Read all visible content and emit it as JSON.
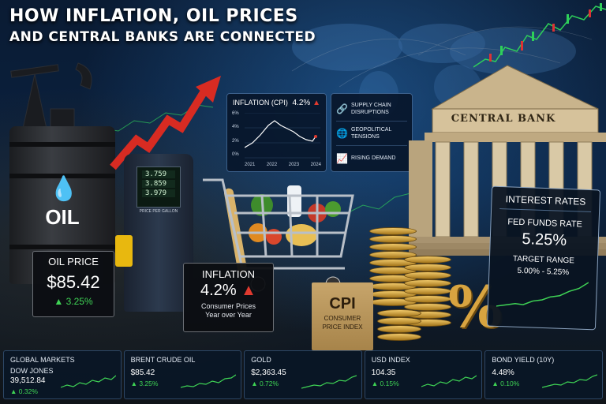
{
  "title": {
    "line1": "HOW INFLATION, OIL PRICES",
    "line2": "AND CENTRAL BANKS ARE CONNECTED"
  },
  "cpi_panel": {
    "label": "INFLATION (CPI)",
    "value": "4.2%",
    "y_ticks": [
      "6%",
      "4%",
      "2%",
      "0%"
    ],
    "x_ticks": [
      "2021",
      "2022",
      "2023",
      "2024"
    ],
    "chart_data": {
      "type": "line",
      "x": [
        "2021",
        "2022",
        "2023",
        "2024"
      ],
      "ylim": [
        0,
        6
      ]
    }
  },
  "factors": [
    {
      "icon": "link-icon",
      "text": "SUPPLY CHAIN DISRUPTIONS"
    },
    {
      "icon": "globe-icon",
      "text": "GEOPOLITICAL TENSIONS"
    },
    {
      "icon": "bar-chart-icon",
      "text": "RISING DEMAND"
    }
  ],
  "oil_barrel": {
    "label": "OIL"
  },
  "oil_price": {
    "label": "OIL PRICE",
    "value": "$85.42",
    "change": "▲ 3.25%"
  },
  "fuel_pump": {
    "prices": [
      "3.759",
      "3.859",
      "3.979"
    ],
    "caption": "PRICE PER GALLON"
  },
  "inflation_card": {
    "label": "INFLATION",
    "value": "4.2%",
    "sub1": "Consumer Prices",
    "sub2": "Year over Year"
  },
  "cpi_bag": {
    "big": "CPI",
    "small1": "CONSUMER",
    "small2": "PRICE INDEX"
  },
  "percent_sign": "%",
  "central_bank": {
    "label": "CENTRAL BANK"
  },
  "interest_rates": {
    "label": "INTEREST RATES",
    "fed_label": "FED FUNDS RATE",
    "fed_value": "5.25%",
    "target_label": "TARGET RANGE",
    "target_value": "5.00% - 5.25%"
  },
  "ticker": [
    {
      "name": "GLOBAL MARKETS",
      "sub": "DOW JONES",
      "value": "39,512.84",
      "change": "▲ 0.32%"
    },
    {
      "name": "BRENT CRUDE OIL",
      "sub": "",
      "value": "$85.42",
      "change": "▲ 3.25%"
    },
    {
      "name": "GOLD",
      "sub": "",
      "value": "$2,363.45",
      "change": "▲ 0.72%"
    },
    {
      "name": "USD INDEX",
      "sub": "",
      "value": "104.35",
      "change": "▲ 0.15%"
    },
    {
      "name": "BOND YIELD (10Y)",
      "sub": "",
      "value": "4.48%",
      "change": "▲ 0.10%"
    }
  ],
  "colors": {
    "up": "#3fd455",
    "down": "#e03a2f",
    "gold": "#d8a440",
    "panel": "#0a1626"
  }
}
